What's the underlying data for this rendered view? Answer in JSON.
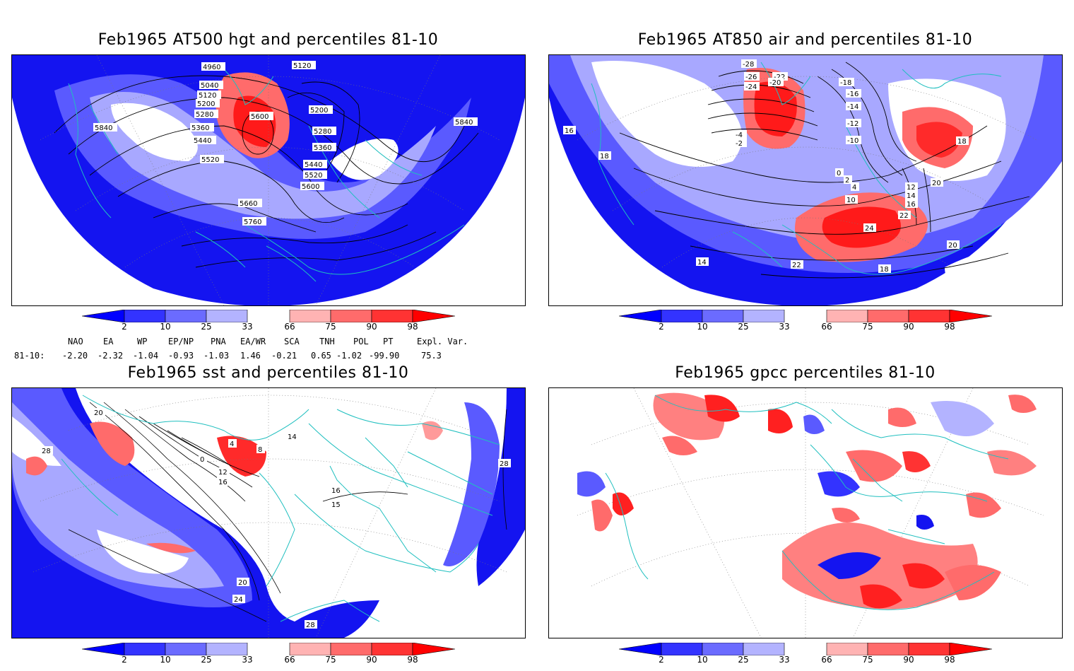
{
  "panels": [
    {
      "title": "Feb1965 AT500 hgt and percentiles 81-10",
      "contour_labels": [
        "4960",
        "5120",
        "5040",
        "5120",
        "5200",
        "5280",
        "5360",
        "5440",
        "5520",
        "5600",
        "5840",
        "5200",
        "5280",
        "5360",
        "5440",
        "5520",
        "5600",
        "5660",
        "5760",
        "5840"
      ]
    },
    {
      "title": "Feb1965 AT850 air and percentiles 81-10",
      "contour_labels": [
        "-28",
        "-26",
        "-24",
        "-22",
        "-20",
        "-18",
        "-16",
        "-14",
        "-12",
        "-10",
        "-4",
        "-2",
        "0",
        "2",
        "4",
        "10",
        "12",
        "14",
        "16",
        "18",
        "20",
        "22",
        "24",
        "16",
        "18",
        "14",
        "18",
        "20",
        "22"
      ]
    },
    {
      "title": "Feb1965 sst and percentiles 81-10",
      "contour_labels": [
        "28",
        "20",
        "0",
        "4",
        "8",
        "12",
        "16",
        "14",
        "16",
        "15",
        "20",
        "24",
        "28",
        "28"
      ]
    },
    {
      "title": "Feb1965 gpcc percentiles 81-10",
      "contour_labels": []
    }
  ],
  "colorbar": {
    "ticks": [
      "2",
      "10",
      "25",
      "33",
      "66",
      "75",
      "90",
      "98"
    ],
    "colors": {
      "lt2": "#0000ff",
      "b2_10": "#3333ff",
      "b10_25": "#6b6bff",
      "b25_33": "#b3b3ff",
      "b33_66": "#ffffff",
      "b66_75": "#ffb3b3",
      "b75_90": "#ff6b6b",
      "b90_98": "#ff3333",
      "gt98": "#ff0000"
    }
  },
  "indices": {
    "row_label": "81-10:",
    "headers": [
      "NAO",
      "EA",
      "WP",
      "EP/NP",
      "PNA",
      "EA/WR",
      "SCA",
      "TNH",
      "POL",
      "PT",
      "Expl. Var."
    ],
    "values": [
      "-2.20",
      "-2.32",
      "-1.04",
      "-0.93",
      "-1.03",
      "1.46",
      "-0.21",
      "0.65",
      "-1.02",
      "-99.90",
      "75.3"
    ]
  },
  "colors": {
    "coast": "#1fbfbf",
    "contour": "#000000"
  }
}
